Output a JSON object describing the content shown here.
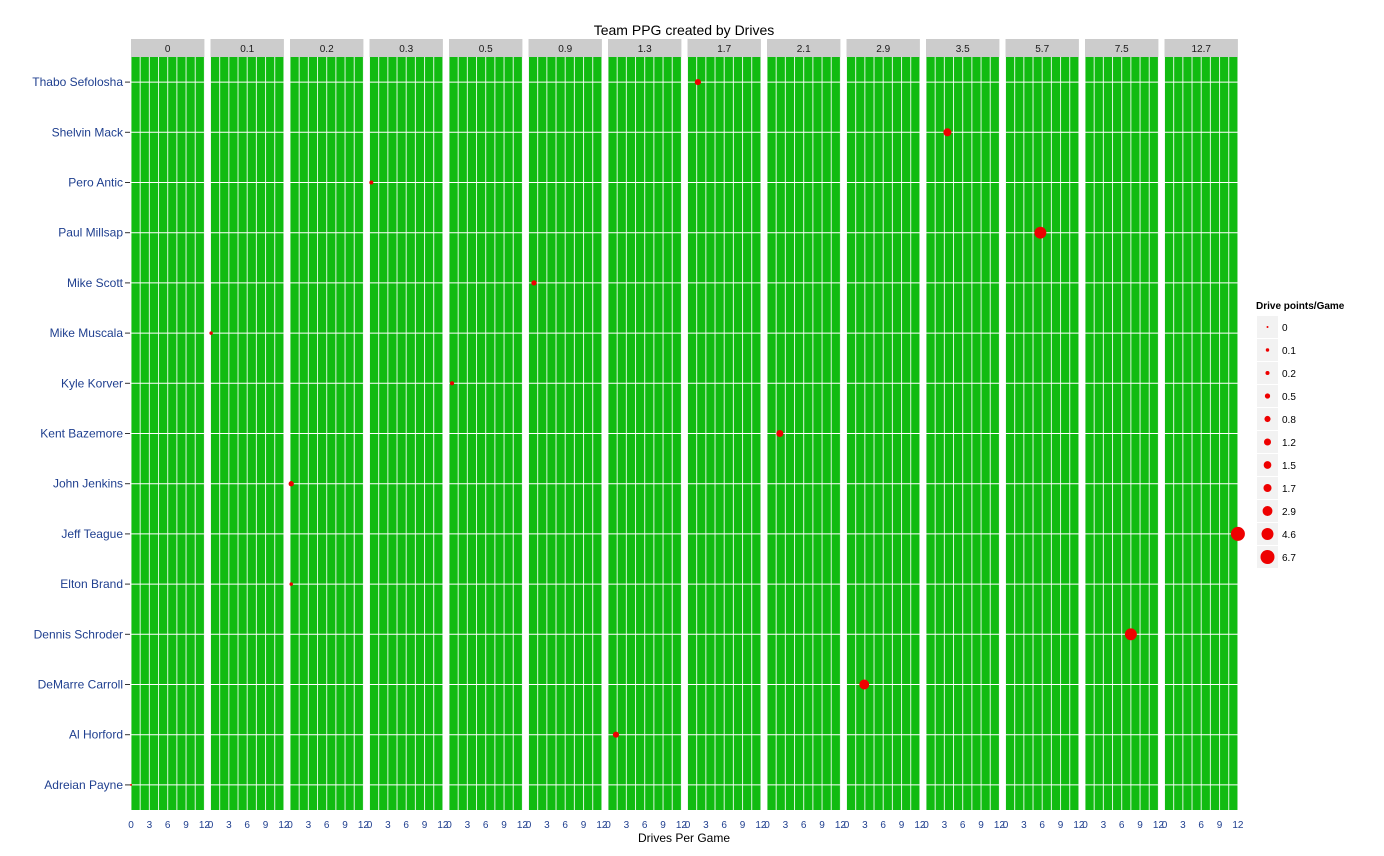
{
  "chart_data": {
    "type": "scatter",
    "title": "Team PPG created by Drives",
    "xlabel": "Drives Per Game",
    "ylabel": "",
    "xlim": [
      0,
      12
    ],
    "x_ticks": [
      "0",
      "3",
      "6",
      "9",
      "12"
    ],
    "panel_background": "#11bb11",
    "point_color": "#ee0000",
    "strip_background": "#cccccc",
    "panels": [
      "0",
      "0.1",
      "0.2",
      "0.3",
      "0.5",
      "0.9",
      "1.3",
      "1.7",
      "2.1",
      "2.9",
      "3.5",
      "5.7",
      "7.5",
      "12.7"
    ],
    "players": [
      "Thabo Sefolosha",
      "Shelvin Mack",
      "Pero Antic",
      "Paul Millsap",
      "Mike Scott",
      "Mike Muscala",
      "Kyle Korver",
      "Kent Bazemore",
      "John Jenkins",
      "Jeff Teague",
      "Elton Brand",
      "Dennis Schroder",
      "DeMarre Carroll",
      "Al Horford",
      "Adreian Payne"
    ],
    "points": [
      {
        "player": "Thabo Sefolosha",
        "panel": "1.7",
        "x": 1.7,
        "size": 0.8
      },
      {
        "player": "Shelvin Mack",
        "panel": "3.5",
        "x": 3.5,
        "size": 1.7
      },
      {
        "player": "Pero Antic",
        "panel": "0.3",
        "x": 0.3,
        "size": 0.2
      },
      {
        "player": "Paul Millsap",
        "panel": "5.7",
        "x": 5.7,
        "size": 4.6
      },
      {
        "player": "Mike Scott",
        "panel": "0.9",
        "x": 0.9,
        "size": 0.5
      },
      {
        "player": "Mike Muscala",
        "panel": "0.1",
        "x": 0.1,
        "size": 0.1
      },
      {
        "player": "Kyle Korver",
        "panel": "0.5",
        "x": 0.5,
        "size": 0.2
      },
      {
        "player": "Kent Bazemore",
        "panel": "2.1",
        "x": 2.1,
        "size": 1.2
      },
      {
        "player": "John Jenkins",
        "panel": "0.2",
        "x": 0.2,
        "size": 0.5
      },
      {
        "player": "Jeff Teague",
        "panel": "12.7",
        "x": 12.7,
        "size": 6.7
      },
      {
        "player": "Elton Brand",
        "panel": "0.2",
        "x": 0.2,
        "size": 0.1
      },
      {
        "player": "Dennis Schroder",
        "panel": "7.5",
        "x": 7.5,
        "size": 4.6
      },
      {
        "player": "DeMarre Carroll",
        "panel": "2.9",
        "x": 2.9,
        "size": 2.9
      },
      {
        "player": "Al Horford",
        "panel": "1.3",
        "x": 1.3,
        "size": 0.8
      },
      {
        "player": "Adreian Payne",
        "panel": "0",
        "x": 0,
        "size": 0
      }
    ],
    "legend": {
      "title": "Drive points/Game",
      "position": "right",
      "entries": [
        "0",
        "0.1",
        "0.2",
        "0.5",
        "0.8",
        "1.2",
        "1.5",
        "1.7",
        "2.9",
        "4.6",
        "6.7"
      ]
    }
  }
}
